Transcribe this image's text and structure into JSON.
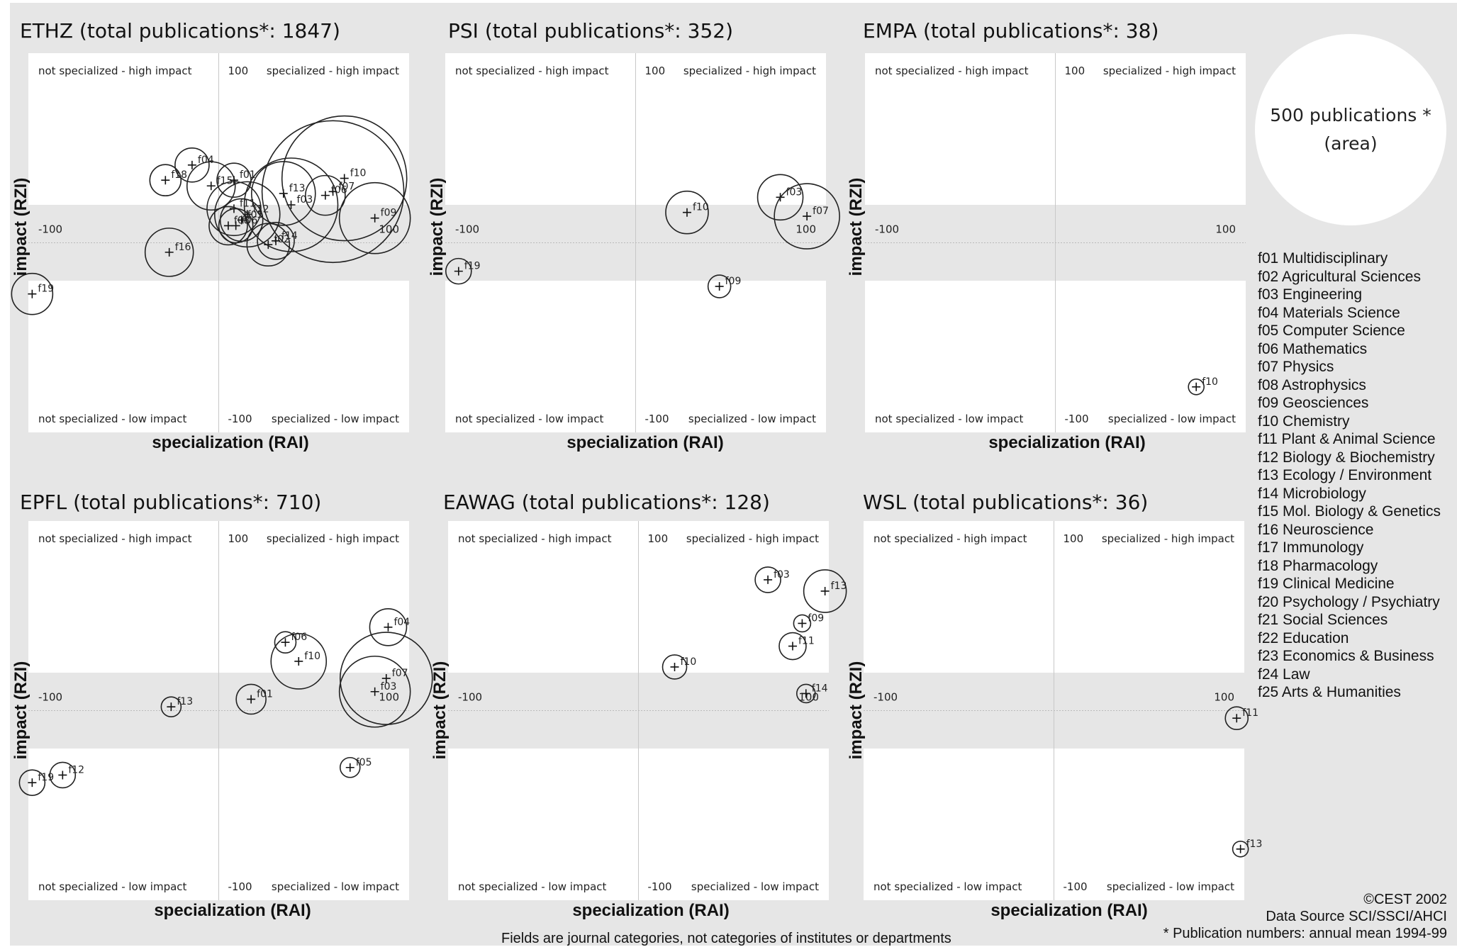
{
  "chart_data": [
    {
      "type": "bubble",
      "title": "ETHZ (total publications*: 1847)",
      "xlabel": "specialization (RAI)",
      "ylabel": "impact (RZI)",
      "xlim": [
        -100,
        100
      ],
      "ylim": [
        -100,
        100
      ],
      "quadrants": [
        "not specialized - high impact",
        "specialized - high impact",
        "not specialized - low impact",
        "specialized - low impact"
      ],
      "points": [
        {
          "label": "f19",
          "x": -98,
          "y": -27,
          "r": 29
        },
        {
          "label": "f16",
          "x": -26,
          "y": -5,
          "r": 34
        },
        {
          "label": "f18",
          "x": -28,
          "y": 33,
          "r": 22
        },
        {
          "label": "f04",
          "x": -14,
          "y": 41,
          "r": 24
        },
        {
          "label": "f15",
          "x": -4,
          "y": 30,
          "r": 34
        },
        {
          "label": "f01",
          "x": 8,
          "y": 33,
          "r": 24
        },
        {
          "label": "f11",
          "x": 8,
          "y": 18,
          "r": 38
        },
        {
          "label": "f12",
          "x": 15,
          "y": 15,
          "r": 46
        },
        {
          "label": "f05",
          "x": 12,
          "y": 12,
          "r": 30
        },
        {
          "label": "f06",
          "x": 9,
          "y": 9,
          "r": 24
        },
        {
          "label": "f08",
          "x": 5,
          "y": 9,
          "r": 27
        },
        {
          "label": "f02",
          "x": 26,
          "y": -1,
          "r": 30
        },
        {
          "label": "f14",
          "x": 30,
          "y": 1,
          "r": 26
        },
        {
          "label": "f13",
          "x": 34,
          "y": 26,
          "r": 45
        },
        {
          "label": "f03",
          "x": 38,
          "y": 20,
          "r": 66
        },
        {
          "label": "f06",
          "x": 56,
          "y": 25,
          "r": 28
        },
        {
          "label": "f07",
          "x": 60,
          "y": 27,
          "r": 100
        },
        {
          "label": "f10",
          "x": 66,
          "y": 34,
          "r": 88
        },
        {
          "label": "f09",
          "x": 82,
          "y": 13,
          "r": 50
        }
      ]
    },
    {
      "type": "bubble",
      "title": "PSI (total publications*: 352)",
      "xlabel": "specialization (RAI)",
      "ylabel": "impact (RZI)",
      "xlim": [
        -100,
        100
      ],
      "ylim": [
        -100,
        100
      ],
      "quadrants": [
        "not specialized - high impact",
        "specialized - high impact",
        "not specialized - low impact",
        "specialized - low impact"
      ],
      "points": [
        {
          "label": "f19",
          "x": -93,
          "y": -15,
          "r": 18
        },
        {
          "label": "f10",
          "x": 27,
          "y": 16,
          "r": 30
        },
        {
          "label": "f09",
          "x": 44,
          "y": -23,
          "r": 16
        },
        {
          "label": "f03",
          "x": 76,
          "y": 24,
          "r": 32
        },
        {
          "label": "f07",
          "x": 90,
          "y": 14,
          "r": 46
        }
      ]
    },
    {
      "type": "bubble",
      "title": "EMPA (total publications*: 38)",
      "xlabel": "specialization (RAI)",
      "ylabel": "impact (RZI)",
      "xlim": [
        -100,
        100
      ],
      "ylim": [
        -100,
        100
      ],
      "quadrants": [
        "not specialized - high impact",
        "specialized - high impact",
        "not specialized - low impact",
        "specialized - low impact"
      ],
      "points": [
        {
          "label": "f10",
          "x": 74,
          "y": -76,
          "r": 11
        }
      ]
    },
    {
      "type": "bubble",
      "title": "EPFL (total publications*: 710)",
      "xlabel": "specialization (RAI)",
      "ylabel": "impact (RZI)",
      "xlim": [
        -100,
        100
      ],
      "ylim": [
        -100,
        100
      ],
      "quadrants": [
        "not specialized - high impact",
        "specialized - high impact",
        "not specialized - low impact",
        "specialized - low impact"
      ],
      "points": [
        {
          "label": "f19",
          "x": -98,
          "y": -38,
          "r": 18
        },
        {
          "label": "f12",
          "x": -82,
          "y": -34,
          "r": 18
        },
        {
          "label": "f13",
          "x": -25,
          "y": 2,
          "r": 14
        },
        {
          "label": "f01",
          "x": 17,
          "y": 6,
          "r": 21
        },
        {
          "label": "f06",
          "x": 35,
          "y": 36,
          "r": 15
        },
        {
          "label": "f10",
          "x": 42,
          "y": 26,
          "r": 39
        },
        {
          "label": "f05",
          "x": 69,
          "y": -30,
          "r": 14
        },
        {
          "label": "f03",
          "x": 82,
          "y": 10,
          "r": 50
        },
        {
          "label": "f07",
          "x": 88,
          "y": 17,
          "r": 65
        },
        {
          "label": "f04",
          "x": 89,
          "y": 44,
          "r": 26
        }
      ]
    },
    {
      "type": "bubble",
      "title": "EAWAG (total publications*: 128)",
      "xlabel": "specialization (RAI)",
      "ylabel": "impact (RZI)",
      "xlim": [
        -100,
        100
      ],
      "ylim": [
        -100,
        100
      ],
      "quadrants": [
        "not specialized - high impact",
        "specialized - high impact",
        "not specialized - low impact",
        "specialized - low impact"
      ],
      "points": [
        {
          "label": "f10",
          "x": 19,
          "y": 23,
          "r": 17
        },
        {
          "label": "f03",
          "x": 68,
          "y": 69,
          "r": 18
        },
        {
          "label": "f13",
          "x": 98,
          "y": 63,
          "r": 30
        },
        {
          "label": "f09",
          "x": 86,
          "y": 46,
          "r": 12
        },
        {
          "label": "f11",
          "x": 81,
          "y": 34,
          "r": 19
        },
        {
          "label": "f14",
          "x": 88,
          "y": 9,
          "r": 13
        }
      ]
    },
    {
      "type": "bubble",
      "title": "WSL (total publications*: 36)",
      "xlabel": "specialization (RAI)",
      "ylabel": "impact (RZI)",
      "xlim": [
        -100,
        100
      ],
      "ylim": [
        -100,
        100
      ],
      "quadrants": [
        "not specialized - high impact",
        "specialized - high impact",
        "not specialized - low impact",
        "specialized - low impact"
      ],
      "points": [
        {
          "label": "f11",
          "x": 96,
          "y": -4,
          "r": 16
        },
        {
          "label": "f13",
          "x": 98,
          "y": -73,
          "r": 11
        }
      ]
    }
  ],
  "axis_tick_labels": {
    "high": "100",
    "low": "-100"
  },
  "size_reference": {
    "line1": "500 publications *",
    "line2": "(area)"
  },
  "legend": [
    "f01 Multidisciplinary",
    "f02 Agricultural Sciences",
    "f03 Engineering",
    "f04 Materials Science",
    "f05 Computer Science",
    "f06 Mathematics",
    "f07 Physics",
    "f08 Astrophysics",
    "f09 Geosciences",
    "f10 Chemistry",
    "f11 Plant & Animal Science",
    "f12 Biology & Biochemistry",
    "f13 Ecology / Environment",
    "f14 Microbiology",
    "f15 Mol. Biology & Genetics",
    "f16 Neuroscience",
    "f17 Immunology",
    "f18 Pharmacology",
    "f19 Clinical Medicine",
    "f20 Psychology / Psychiatry",
    "f21 Social Sciences",
    "f22 Education",
    "f23 Economics & Business",
    "f24 Law",
    "f25 Arts & Humanities"
  ],
  "footer": {
    "copyright": "©CEST 2002",
    "source": "Data Source SCI/SSCI/AHCI",
    "note": "* Publication numbers: annual mean 1994-99",
    "fields_note": "Fields are journal categories, not categories of institutes or departments"
  }
}
